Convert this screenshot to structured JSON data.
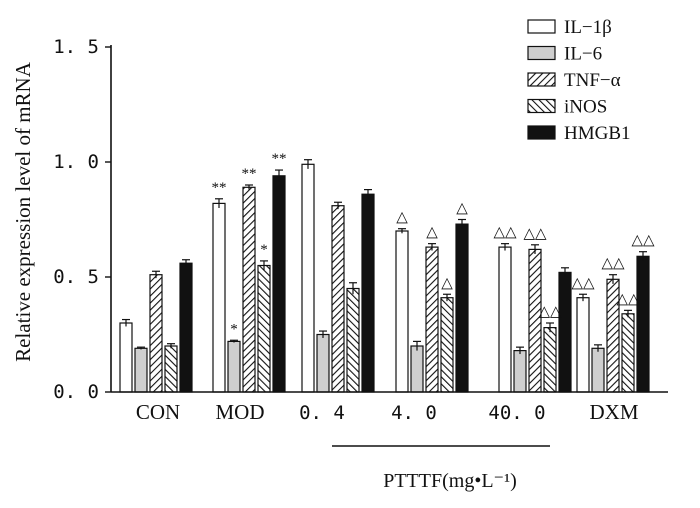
{
  "chart_data": {
    "type": "bar",
    "ylabel": "Relative expression level of mRNA",
    "ylim": [
      0,
      1.5
    ],
    "yticks": [
      {
        "value": 0.0,
        "label": "0. 0"
      },
      {
        "value": 0.5,
        "label": "0. 5"
      },
      {
        "value": 1.0,
        "label": "1. 0"
      },
      {
        "value": 1.5,
        "label": "1. 5"
      }
    ],
    "categories": [
      "CON",
      "MOD",
      "0. 4",
      "4. 0",
      "40. 0",
      "DXM"
    ],
    "group_label": "PTTTF(mg•L⁻¹)",
    "series": [
      {
        "name": "IL−1β",
        "pattern": "white",
        "values": [
          0.3,
          0.82,
          0.99,
          0.7,
          0.63,
          0.41
        ],
        "errors": [
          0.015,
          0.02,
          0.02,
          0.01,
          0.015,
          0.015
        ],
        "annotations": [
          "",
          "**",
          "",
          "△",
          "△△",
          "△△"
        ]
      },
      {
        "name": "IL−6",
        "pattern": "gray",
        "values": [
          0.19,
          0.22,
          0.25,
          0.2,
          0.18,
          0.19
        ],
        "errors": [
          0.005,
          0.005,
          0.015,
          0.02,
          0.015,
          0.015
        ],
        "annotations": [
          "",
          "*",
          "",
          "",
          "",
          ""
        ]
      },
      {
        "name": "TNF−α",
        "pattern": "hatch-fwd",
        "values": [
          0.51,
          0.89,
          0.81,
          0.63,
          0.62,
          0.49
        ],
        "errors": [
          0.015,
          0.01,
          0.015,
          0.015,
          0.02,
          0.02
        ],
        "annotations": [
          "",
          "**",
          "",
          "△",
          "△△",
          "△△"
        ]
      },
      {
        "name": "iNOS",
        "pattern": "hatch-back",
        "values": [
          0.2,
          0.55,
          0.45,
          0.41,
          0.28,
          0.34
        ],
        "errors": [
          0.01,
          0.02,
          0.025,
          0.015,
          0.02,
          0.015
        ],
        "annotations": [
          "",
          "*",
          "",
          "△",
          "△△",
          "△△"
        ]
      },
      {
        "name": "HMGB1",
        "pattern": "black",
        "values": [
          0.56,
          0.94,
          0.86,
          0.73,
          0.52,
          0.59
        ],
        "errors": [
          0.015,
          0.025,
          0.02,
          0.02,
          0.02,
          0.02
        ],
        "annotations": [
          "",
          "**",
          "",
          "△",
          "",
          "△△"
        ]
      }
    ]
  }
}
